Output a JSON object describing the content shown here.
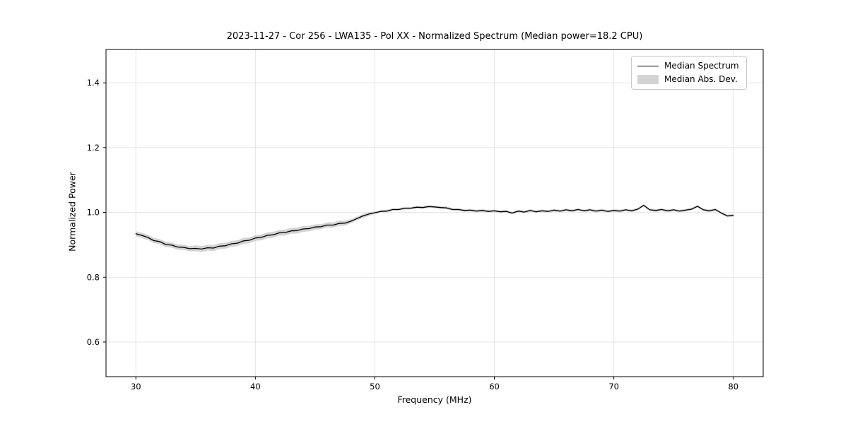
{
  "chart_data": {
    "type": "line",
    "title": "2023-11-27 - Cor 256 - LWA135 - Pol XX - Normalized Spectrum (Median power=18.2 CPU)",
    "xlabel": "Frequency (MHz)",
    "ylabel": "Normalized Power",
    "xlim": [
      27.5,
      82.5
    ],
    "ylim": [
      0.493,
      1.503
    ],
    "xticks": [
      30,
      40,
      50,
      60,
      70,
      80
    ],
    "yticks": [
      0.6,
      0.8,
      1.0,
      1.2,
      1.4
    ],
    "grid": true,
    "legend_position": "upper right",
    "legend": [
      "Median Spectrum",
      "Median Abs. Dev."
    ],
    "line_color": "#000000",
    "band_color": "#d3d3d3",
    "x": [
      30.0,
      30.5,
      31.0,
      31.5,
      32.0,
      32.5,
      33.0,
      33.5,
      34.0,
      34.5,
      35.0,
      35.5,
      36.0,
      36.5,
      37.0,
      37.5,
      38.0,
      38.5,
      39.0,
      39.5,
      40.0,
      40.5,
      41.0,
      41.5,
      42.0,
      42.5,
      43.0,
      43.5,
      44.0,
      44.5,
      45.0,
      45.5,
      46.0,
      46.5,
      47.0,
      47.5,
      48.0,
      48.5,
      49.0,
      49.5,
      50.0,
      50.5,
      51.0,
      51.5,
      52.0,
      52.5,
      53.0,
      53.5,
      54.0,
      54.5,
      55.0,
      55.5,
      56.0,
      56.5,
      57.0,
      57.5,
      58.0,
      58.5,
      59.0,
      59.5,
      60.0,
      60.5,
      61.0,
      61.5,
      62.0,
      62.5,
      63.0,
      63.5,
      64.0,
      64.5,
      65.0,
      65.5,
      66.0,
      66.5,
      67.0,
      67.5,
      68.0,
      68.5,
      69.0,
      69.5,
      70.0,
      70.5,
      71.0,
      71.5,
      72.0,
      72.5,
      73.0,
      73.5,
      74.0,
      74.5,
      75.0,
      75.5,
      76.0,
      76.5,
      77.0,
      77.5,
      78.0,
      78.5,
      79.0,
      79.5,
      80.0
    ],
    "y": [
      0.934,
      0.929,
      0.923,
      0.913,
      0.91,
      0.901,
      0.899,
      0.893,
      0.892,
      0.888,
      0.889,
      0.887,
      0.891,
      0.89,
      0.896,
      0.897,
      0.903,
      0.905,
      0.912,
      0.914,
      0.921,
      0.923,
      0.929,
      0.931,
      0.937,
      0.938,
      0.943,
      0.944,
      0.949,
      0.95,
      0.955,
      0.956,
      0.961,
      0.961,
      0.966,
      0.967,
      0.973,
      0.981,
      0.989,
      0.995,
      0.999,
      1.003,
      1.004,
      1.009,
      1.009,
      1.013,
      1.013,
      1.016,
      1.015,
      1.018,
      1.017,
      1.015,
      1.014,
      1.009,
      1.009,
      1.006,
      1.007,
      1.004,
      1.006,
      1.003,
      1.005,
      1.002,
      1.003,
      0.998,
      1.004,
      1.001,
      1.006,
      1.002,
      1.005,
      1.003,
      1.007,
      1.004,
      1.008,
      1.005,
      1.009,
      1.005,
      1.008,
      1.004,
      1.007,
      1.003,
      1.006,
      1.004,
      1.008,
      1.005,
      1.01,
      1.022,
      1.008,
      1.006,
      1.009,
      1.005,
      1.008,
      1.004,
      1.007,
      1.01,
      1.019,
      1.008,
      1.005,
      1.009,
      0.998,
      0.989,
      0.991
    ],
    "mad": [
      0.008,
      0.008,
      0.008,
      0.008,
      0.008,
      0.008,
      0.008,
      0.008,
      0.008,
      0.008,
      0.009,
      0.009,
      0.009,
      0.009,
      0.009,
      0.009,
      0.009,
      0.009,
      0.009,
      0.009,
      0.009,
      0.009,
      0.009,
      0.009,
      0.009,
      0.009,
      0.009,
      0.009,
      0.009,
      0.008,
      0.008,
      0.008,
      0.008,
      0.008,
      0.008,
      0.008,
      0.006,
      0.006,
      0.006,
      0.006,
      0.004,
      0.004,
      0.004,
      0.004,
      0.004,
      0.004,
      0.004,
      0.004,
      0.004,
      0.004,
      0.004,
      0.004,
      0.004,
      0.004,
      0.004,
      0.004,
      0.004,
      0.004,
      0.004,
      0.004,
      0.004,
      0.004,
      0.004,
      0.004,
      0.004,
      0.004,
      0.004,
      0.004,
      0.004,
      0.004,
      0.004,
      0.004,
      0.004,
      0.004,
      0.004,
      0.004,
      0.004,
      0.004,
      0.004,
      0.004,
      0.004,
      0.004,
      0.004,
      0.004,
      0.004,
      0.004,
      0.004,
      0.004,
      0.004,
      0.004,
      0.004,
      0.004,
      0.004,
      0.004,
      0.004,
      0.004,
      0.004,
      0.004,
      0.004,
      0.004,
      0.004
    ]
  }
}
